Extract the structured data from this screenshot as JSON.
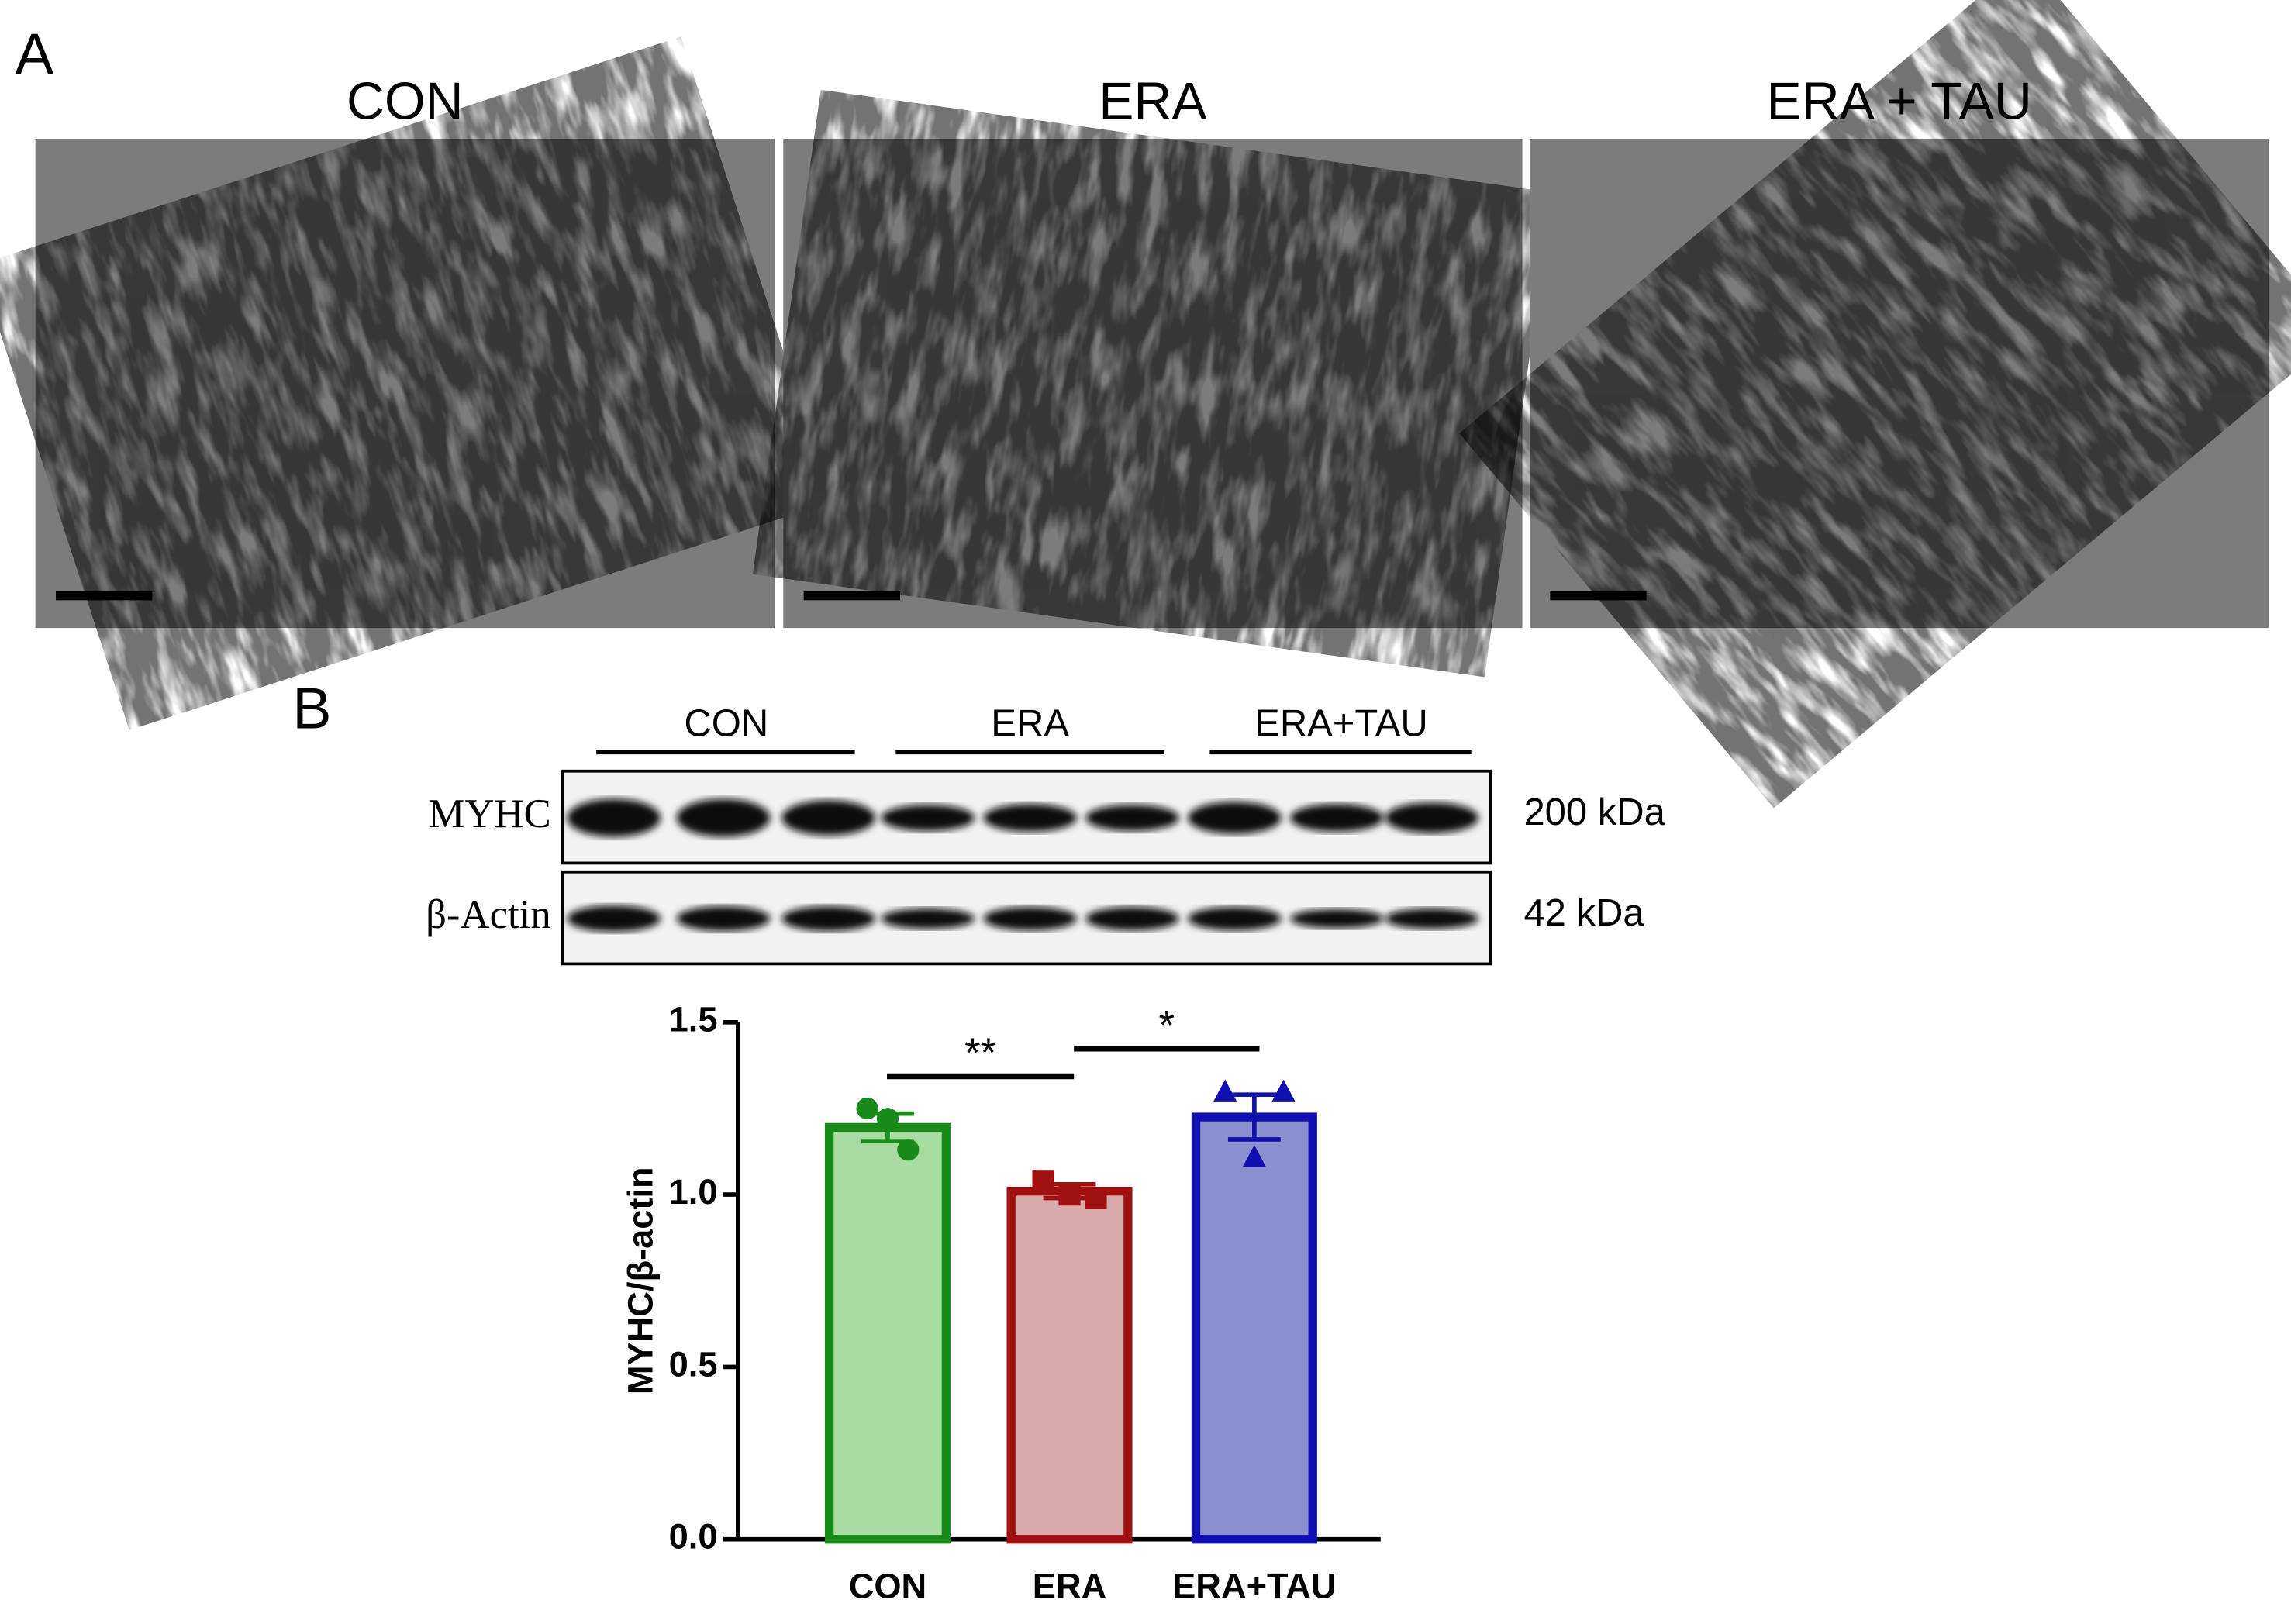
{
  "panel_a": {
    "label": "A",
    "conditions": [
      "CON",
      "ERA",
      "ERA + TAU"
    ]
  },
  "panel_b": {
    "label": "B",
    "blot_groups": [
      "CON",
      "ERA",
      "ERA+TAU"
    ],
    "blot_rows": [
      {
        "protein": "MYHC",
        "size": "200 kDa"
      },
      {
        "protein": "β-Actin",
        "size": "42 kDa"
      }
    ]
  },
  "chart_data": {
    "type": "bar",
    "y_label": "MYHC/β-actin",
    "categories": [
      "CON",
      "ERA",
      "ERA+TAU"
    ],
    "values": [
      1.195,
      1.01,
      1.225
    ],
    "errors": [
      0.04,
      0.02,
      0.065
    ],
    "points": [
      [
        1.25,
        1.22,
        1.13
      ],
      [
        1.04,
        1.0,
        0.99
      ],
      [
        1.3,
        1.3,
        1.11
      ]
    ],
    "markers": [
      "circle",
      "square",
      "triangle"
    ],
    "colors": [
      "#1a8a1a",
      "#a01010",
      "#1010b0"
    ],
    "fill_colors": [
      "#a8dca0",
      "#d8aaaa",
      "#8890d0"
    ],
    "ylim": [
      0,
      1.5
    ],
    "yticks": [
      {
        "value": 0,
        "label": "0.0"
      },
      0.5,
      {
        "value": 1,
        "label": "1.0"
      },
      1.5
    ],
    "annotations": [
      "**",
      "*"
    ]
  }
}
